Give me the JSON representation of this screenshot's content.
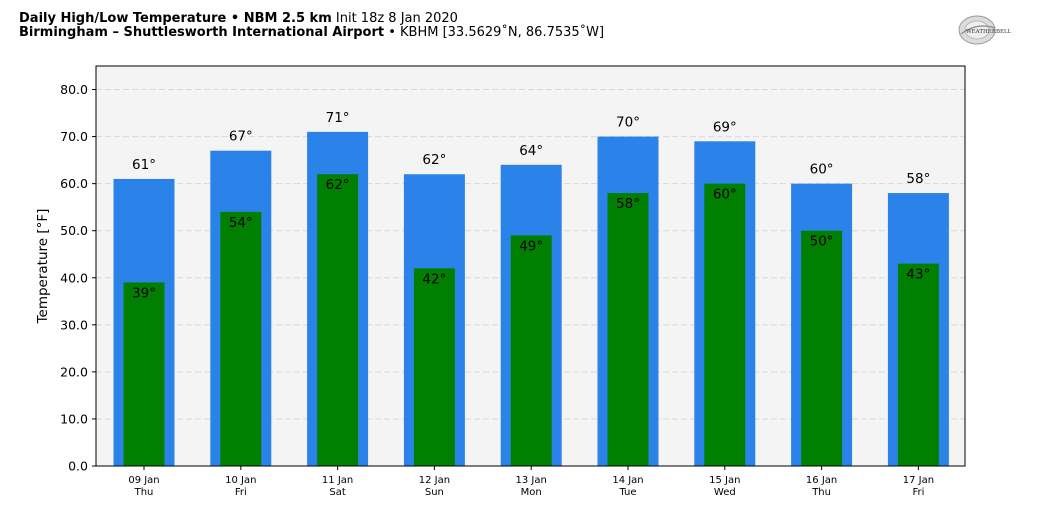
{
  "header": {
    "title1_bold": "Daily High/Low Temperature • NBM 2.5 km",
    "title1_rest": " Init 18z 8 Jan 2020",
    "title2_bold": "Birmingham – Shuttlesworth International Airport",
    "title2_rest": " • KBHM [33.5629˚N, 86.7535˚W]",
    "logo_text": "WEATHERBELL"
  },
  "colors": {
    "high": "#2b83ea",
    "low": "#007f00",
    "plot_bg": "#f4f4f4",
    "grid": "#d8d8d8"
  },
  "chart_data": {
    "type": "bar",
    "title": "Daily High/Low Temperature • NBM 2.5 km",
    "ylabel": "Temperature [°F]",
    "ylim": [
      0,
      85
    ],
    "yticks": [
      0,
      10,
      20,
      30,
      40,
      50,
      60,
      70,
      80
    ],
    "grid": true,
    "categories": [
      "09 Jan",
      "10 Jan",
      "11 Jan",
      "12 Jan",
      "13 Jan",
      "14 Jan",
      "15 Jan",
      "16 Jan",
      "17 Jan"
    ],
    "weekdays": [
      "Thu",
      "Fri",
      "Sat",
      "Sun",
      "Mon",
      "Tue",
      "Wed",
      "Thu",
      "Fri"
    ],
    "series": [
      {
        "values": [
          61,
          67,
          71,
          62,
          64,
          70,
          69,
          60,
          58
        ]
      },
      {
        "values": [
          39,
          54,
          62,
          42,
          49,
          58,
          60,
          50,
          43
        ]
      }
    ]
  }
}
